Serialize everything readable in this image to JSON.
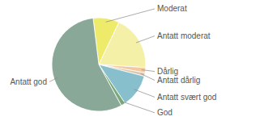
{
  "chart_data": {
    "type": "pie",
    "categories": [
      "Moderat",
      "Antatt moderat",
      "Dårlig",
      "Antatt dårlig",
      "Antatt svært god",
      "God",
      "Antatt god"
    ],
    "values": [
      9.0,
      19.0,
      1.8,
      1.2,
      11.5,
      1.5,
      56.0
    ],
    "colors": [
      "#eeea6a",
      "#f5f0a8",
      "#f5c9a0",
      "#d8c8b0",
      "#88bfcc",
      "#7aaa7a",
      "#8aa898"
    ]
  }
}
